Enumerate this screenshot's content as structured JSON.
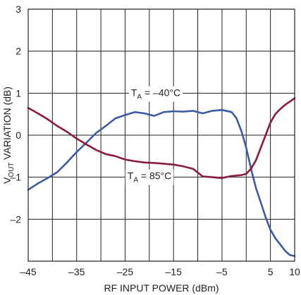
{
  "chart_data": {
    "type": "line",
    "xlabel": "RF INPUT POWER (dBm)",
    "ylabel_main": "V",
    "ylabel_sub": "OUT",
    "ylabel_rest": " VARIATION (dB)",
    "xlim": [
      -45,
      10
    ],
    "ylim": [
      -3,
      3
    ],
    "x_gridlines": [
      -45,
      -40,
      -35,
      -30,
      -25,
      -20,
      -15,
      -10,
      -5,
      0,
      5,
      10
    ],
    "y_gridlines": [
      -3,
      -2,
      -1,
      0,
      1,
      2,
      3
    ],
    "x_tick_labels": [
      {
        "value": -45,
        "text": "–45"
      },
      {
        "value": -35,
        "text": "–35"
      },
      {
        "value": -25,
        "text": "–25"
      },
      {
        "value": -15,
        "text": "–15"
      },
      {
        "value": -5,
        "text": "–5"
      },
      {
        "value": 5,
        "text": "5"
      },
      {
        "value": 10,
        "text": "10"
      }
    ],
    "y_tick_labels": [
      {
        "value": 3,
        "text": "3"
      },
      {
        "value": 2,
        "text": "2"
      },
      {
        "value": 1,
        "text": "1"
      },
      {
        "value": 0,
        "text": "0"
      },
      {
        "value": -1,
        "text": "–1"
      },
      {
        "value": -2,
        "text": "–2"
      }
    ],
    "grid": true,
    "series": [
      {
        "name": "TA = –40°C",
        "color": "#3b5ba5",
        "x": [
          -45,
          -43,
          -41,
          -39,
          -37,
          -35,
          -33,
          -31,
          -29,
          -27,
          -25,
          -23,
          -21,
          -19,
          -17,
          -15,
          -13,
          -11,
          -9,
          -7,
          -5,
          -3,
          -2,
          -1,
          0,
          1,
          2,
          3,
          4,
          5,
          6,
          7,
          8,
          9,
          10
        ],
        "y": [
          -1.3,
          -1.15,
          -1.02,
          -0.88,
          -0.65,
          -0.4,
          -0.18,
          0.05,
          0.22,
          0.4,
          0.48,
          0.55,
          0.52,
          0.46,
          0.55,
          0.57,
          0.56,
          0.58,
          0.52,
          0.58,
          0.6,
          0.55,
          0.4,
          0.1,
          -0.3,
          -0.8,
          -1.25,
          -1.6,
          -1.95,
          -2.25,
          -2.45,
          -2.6,
          -2.75,
          -2.85,
          -2.88
        ]
      },
      {
        "name": "TA = 85°C",
        "color": "#8c1a3f",
        "x": [
          -45,
          -43,
          -41,
          -39,
          -37,
          -35,
          -33,
          -31,
          -29,
          -27,
          -25,
          -23,
          -21,
          -19,
          -17,
          -15,
          -13,
          -11,
          -9,
          -7,
          -5,
          -3,
          -1,
          0,
          1,
          2,
          3,
          4,
          5,
          6,
          7,
          8,
          9,
          10
        ],
        "y": [
          0.65,
          0.52,
          0.38,
          0.22,
          0.08,
          -0.08,
          -0.22,
          -0.35,
          -0.45,
          -0.5,
          -0.58,
          -0.62,
          -0.65,
          -0.66,
          -0.68,
          -0.7,
          -0.74,
          -0.8,
          -0.98,
          -1.0,
          -1.02,
          -0.97,
          -0.95,
          -0.92,
          -0.8,
          -0.6,
          -0.3,
          0.0,
          0.3,
          0.5,
          0.62,
          0.72,
          0.8,
          0.88
        ]
      }
    ],
    "annotations": [
      {
        "main": "T",
        "sub": "A",
        "rest": " = –40°C",
        "series": 0
      },
      {
        "main": "T",
        "sub": "A",
        "rest": " = 85°C",
        "series": 1
      }
    ]
  }
}
